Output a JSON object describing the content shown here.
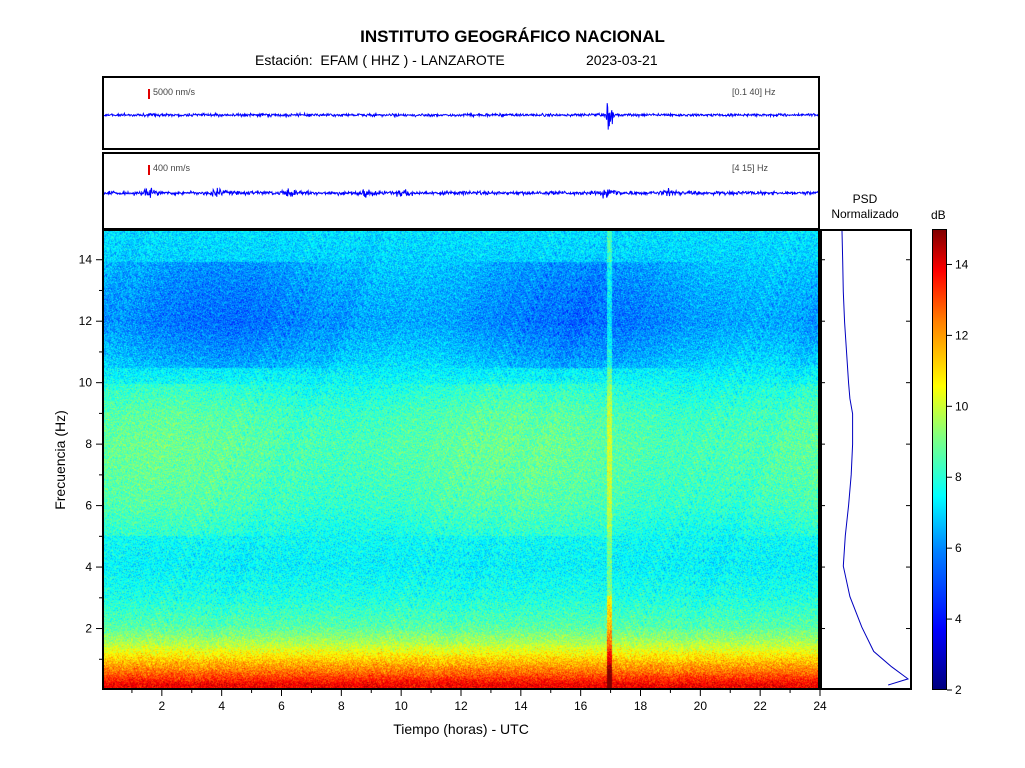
{
  "header": {
    "title": "INSTITUTO GEOGRÁFICO NACIONAL",
    "station": "Estación:  EFAM ( HHZ ) - LANZAROTE",
    "date": "2023-03-21"
  },
  "chart_data": [
    {
      "type": "line",
      "panel": "seismogram-broadband",
      "scale_label": "5000 nm/s",
      "filter_label": "[0.1 40] Hz",
      "x_range": [
        0,
        24
      ],
      "events_hours": [
        17.0
      ]
    },
    {
      "type": "line",
      "panel": "seismogram-filtered",
      "scale_label": "400 nm/s",
      "filter_label": "[4 15] Hz",
      "x_range": [
        0,
        24
      ],
      "events_hours": [
        1.5,
        3.8,
        6.2,
        8.8,
        10.1,
        17.0,
        19.0
      ]
    },
    {
      "type": "heatmap",
      "panel": "spectrogram",
      "xlabel": "Tiempo (horas) - UTC",
      "ylabel": "Frecuencia  (Hz)",
      "xlim": [
        0,
        24
      ],
      "ylim": [
        0,
        15
      ],
      "x_ticks": [
        2,
        4,
        6,
        8,
        10,
        12,
        14,
        16,
        18,
        20,
        22,
        24
      ],
      "y_ticks": [
        2,
        4,
        6,
        8,
        10,
        12,
        14
      ],
      "mean_db_by_freq": {
        "freq_hz": [
          0.1,
          0.5,
          1,
          1.5,
          2,
          3,
          4,
          5,
          6,
          7,
          8,
          9,
          10,
          11,
          12,
          13,
          14,
          15
        ],
        "db": [
          13.5,
          12,
          10.5,
          9,
          8,
          7.2,
          6.8,
          7,
          7.5,
          7.7,
          7.8,
          7.6,
          7,
          6.3,
          5.8,
          6,
          6.3,
          6.5
        ]
      }
    },
    {
      "type": "line",
      "panel": "psd",
      "title": "PSD\nNormalizado",
      "freq_hz": [
        0.1,
        0.3,
        0.7,
        1.2,
        2,
        3,
        3.7,
        4,
        5,
        6,
        7,
        8,
        9,
        9.5,
        10,
        11,
        12,
        13,
        14,
        15
      ],
      "value": [
        0.7,
        1.0,
        0.75,
        0.48,
        0.3,
        0.12,
        0.05,
        0.02,
        0.05,
        0.1,
        0.14,
        0.16,
        0.16,
        0.12,
        0.1,
        0.07,
        0.04,
        0.02,
        0.01,
        0.0
      ]
    },
    {
      "type": "colorbar",
      "panel": "colorbar",
      "unit": "dB",
      "range": [
        2,
        15
      ],
      "ticks": [
        2,
        4,
        6,
        8,
        10,
        12,
        14
      ]
    }
  ]
}
